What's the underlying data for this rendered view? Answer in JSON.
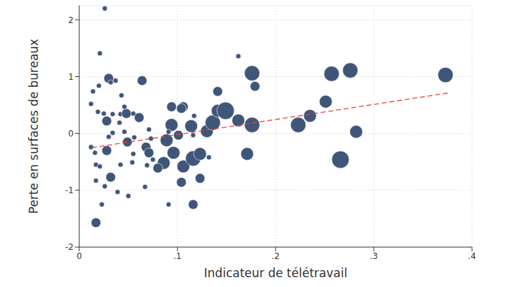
{
  "chart_data": {
    "type": "scatter",
    "x_label": "Indicateur de télétravail",
    "y_label": "Perte en surfaces de bureaux",
    "color": "#3f5679",
    "marker": "circle",
    "grid": true,
    "xlim": [
      0,
      0.4
    ],
    "xticks": [
      0,
      {
        "value": 0.1,
        "label": ".1"
      },
      {
        "value": 0.2,
        "label": ".2"
      },
      {
        "value": 0.3,
        "label": ".3"
      },
      {
        "value": 0.4,
        "label": ".4"
      }
    ],
    "ylim": [
      -2,
      2.25
    ],
    "yticks": [
      -2,
      -1,
      0,
      1,
      2
    ],
    "x": [
      0.026,
      0.021,
      0.012,
      0.014,
      0.02,
      0.03,
      0.037,
      0.032,
      0.043,
      0.064,
      0.019,
      0.025,
      0.034,
      0.042,
      0.048,
      0.055,
      0.061,
      0.046,
      0.028,
      0.041,
      0.046,
      0.03,
      0.034,
      0.056,
      0.049,
      0.071,
      0.073,
      0.012,
      0.016,
      0.028,
      0.055,
      0.068,
      0.071,
      0.075,
      0.069,
      0.017,
      0.021,
      0.032,
      0.042,
      0.054,
      0.017,
      0.026,
      0.039,
      0.05,
      0.067,
      0.023,
      0.017,
      0.091,
      0.116,
      0.094,
      0.106,
      0.104,
      0.094,
      0.089,
      0.091,
      0.101,
      0.116,
      0.114,
      0.117,
      0.096,
      0.086,
      0.08,
      0.106,
      0.104,
      0.116,
      0.123,
      0.123,
      0.132,
      0.13,
      0.136,
      0.141,
      0.141,
      0.149,
      0.162,
      0.162,
      0.176,
      0.179,
      0.176,
      0.171,
      0.223,
      0.235,
      0.251,
      0.257,
      0.276,
      0.266,
      0.282,
      0.373
    ],
    "values": [
      2.2,
      1.41,
      0.52,
      0.74,
      0.84,
      0.97,
      0.93,
      0.9,
      0.67,
      0.93,
      0.38,
      0.35,
      0.34,
      0.34,
      0.35,
      0.35,
      0.28,
      0.47,
      0.22,
      0.19,
      0.03,
      -0.06,
      0.01,
      -0.07,
      -0.15,
      0.07,
      -0.09,
      -0.24,
      -0.34,
      -0.3,
      -0.36,
      -0.24,
      -0.34,
      -0.46,
      -0.56,
      -0.55,
      -0.58,
      -0.77,
      -0.55,
      -0.51,
      -0.83,
      -0.93,
      -1.03,
      -1.1,
      -0.94,
      -1.25,
      -1.57,
      -1.25,
      -1.25,
      0.47,
      0.47,
      0.44,
      0.15,
      -0.12,
      0.03,
      -0.03,
      -0.03,
      0.13,
      0.31,
      -0.34,
      -0.52,
      -0.61,
      -0.58,
      -0.86,
      -0.44,
      -0.36,
      -0.79,
      -0.42,
      0.04,
      0.19,
      0.4,
      0.74,
      0.4,
      0.23,
      1.36,
      1.06,
      0.83,
      0.15,
      -0.36,
      0.15,
      0.31,
      0.56,
      1.05,
      1.11,
      -0.46,
      0.03,
      1.03
    ],
    "size": [
      1,
      1,
      1,
      1,
      1,
      2,
      1,
      1,
      1,
      2,
      1,
      1,
      1,
      1,
      2,
      1,
      2,
      1,
      2,
      1,
      1,
      1,
      1,
      1,
      2,
      1,
      1,
      1,
      1,
      2,
      1,
      2,
      2,
      1,
      1,
      1,
      1,
      2,
      1,
      1,
      1,
      1,
      1,
      1,
      1,
      1,
      2,
      1,
      2,
      2,
      2,
      2,
      3,
      3,
      1,
      2,
      1,
      3,
      1,
      3,
      3,
      2,
      3,
      2,
      4,
      3,
      2,
      1,
      3,
      4,
      3,
      2,
      5,
      3,
      1,
      4,
      2,
      4,
      3,
      4,
      3,
      3,
      4,
      4,
      5,
      3,
      4
    ],
    "fit": {
      "x": [
        0.013,
        0.375
      ],
      "y": [
        -0.25,
        0.71
      ],
      "color": "#e8413c",
      "line_style": "dashed"
    }
  }
}
